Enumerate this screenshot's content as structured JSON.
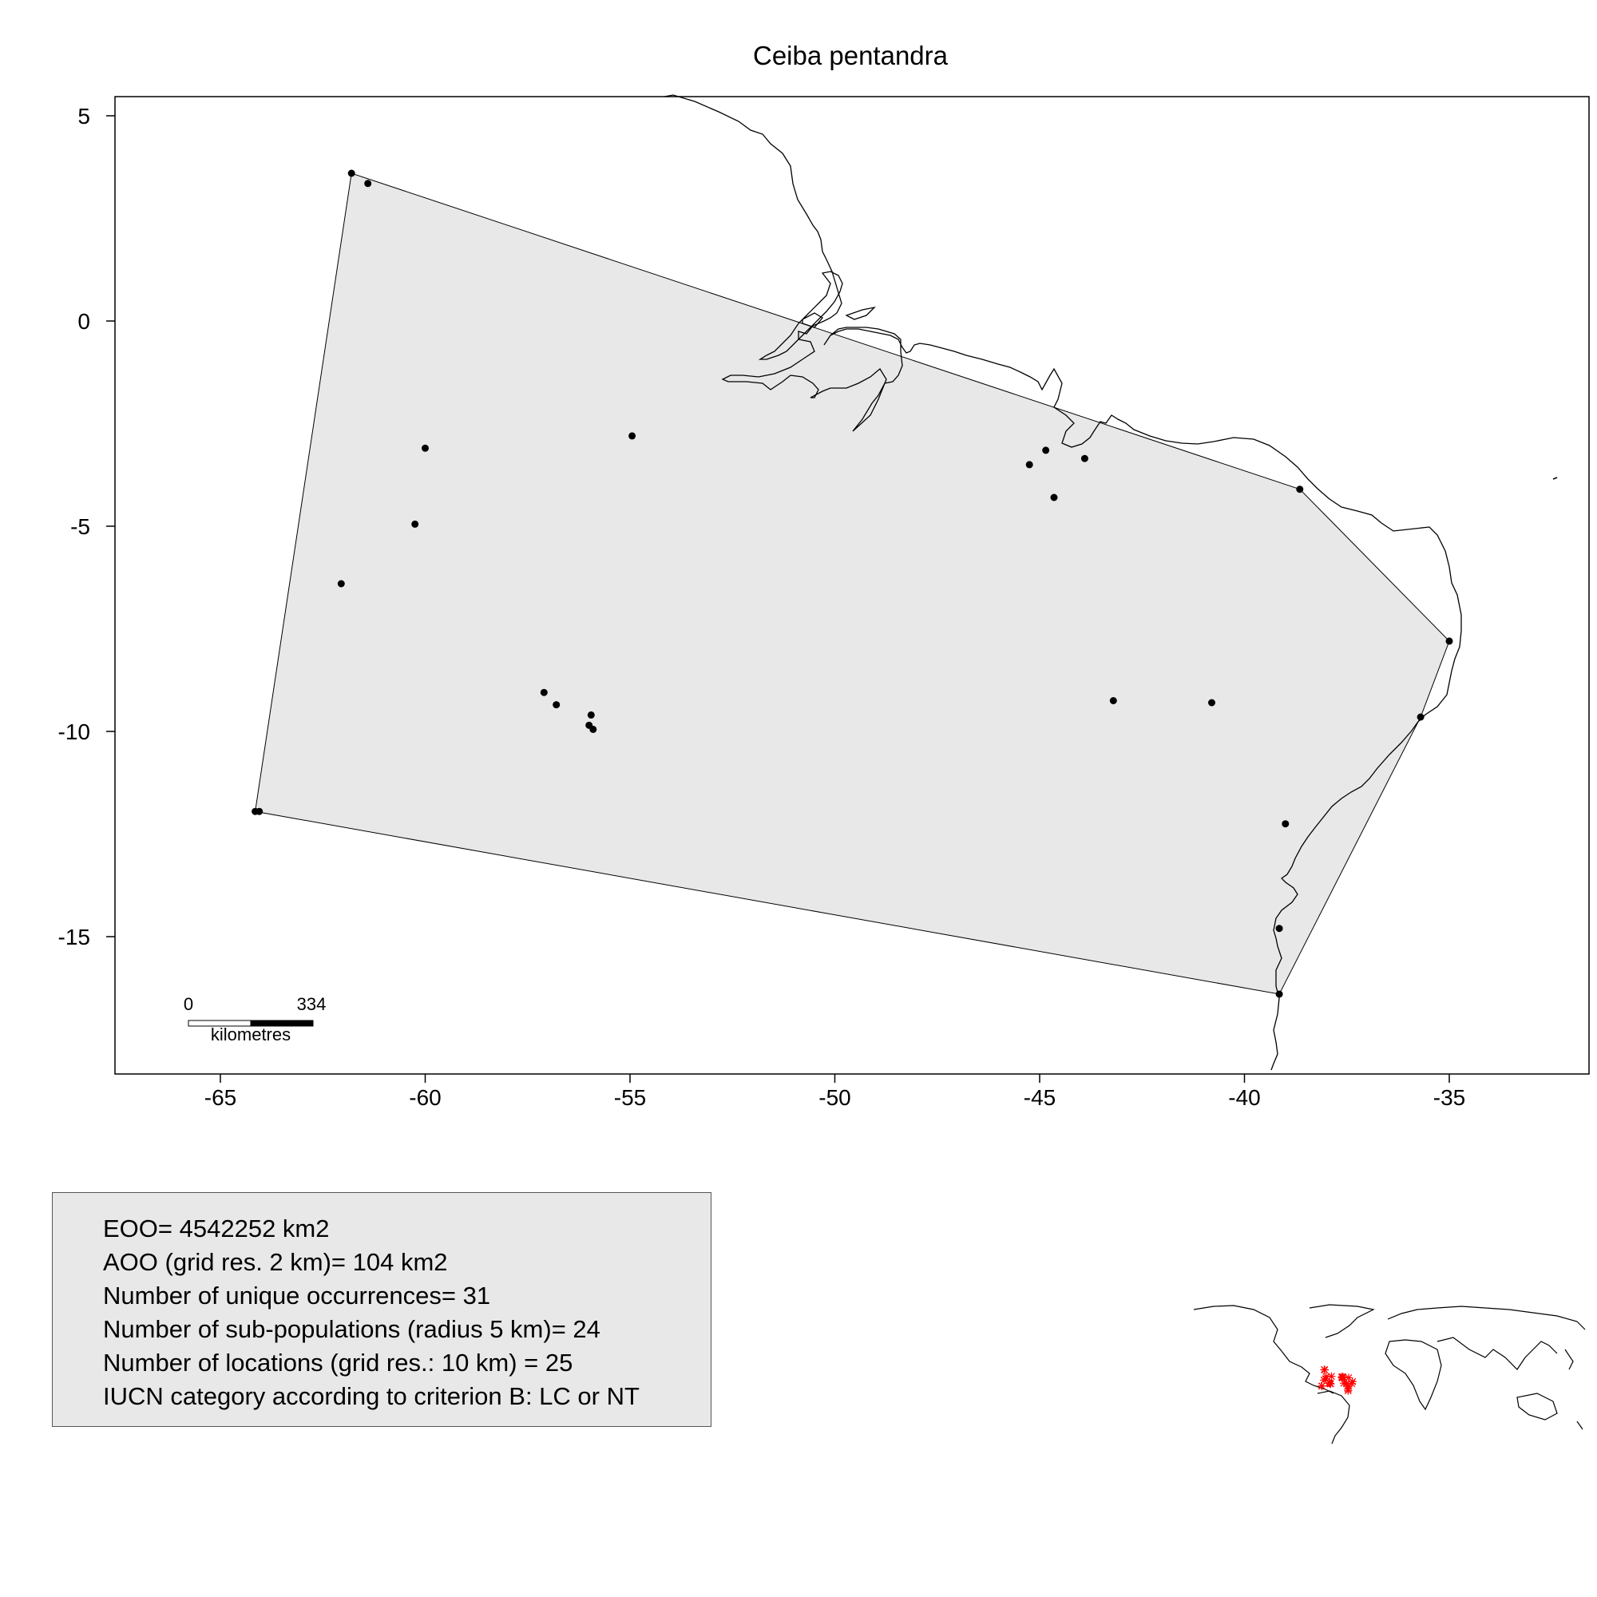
{
  "title": "Ceiba pentandra",
  "map": {
    "x_ticks": [
      "-65",
      "-60",
      "-55",
      "-50",
      "-45",
      "-40",
      "-35"
    ],
    "y_ticks": [
      "5",
      "0",
      "-5",
      "-10",
      "-15"
    ],
    "scale_bar": {
      "start_label": "0",
      "end_label": "334",
      "unit_label": "kilometres"
    },
    "hull_fill": "#e8e8e8",
    "hull_stroke": "#000000",
    "point_color": "#000000",
    "occurrences": [
      [
        -61.8,
        3.6
      ],
      [
        -61.4,
        3.35
      ],
      [
        -60.0,
        -3.1
      ],
      [
        -60.25,
        -4.95
      ],
      [
        -62.05,
        -6.4
      ],
      [
        -54.95,
        -2.8
      ],
      [
        -57.1,
        -9.05
      ],
      [
        -56.8,
        -9.35
      ],
      [
        -56.0,
        -9.85
      ],
      [
        -55.9,
        -9.95
      ],
      [
        -55.95,
        -9.6
      ],
      [
        -64.15,
        -11.95
      ],
      [
        -64.05,
        -11.95
      ],
      [
        -45.25,
        -3.5
      ],
      [
        -44.85,
        -3.15
      ],
      [
        -44.65,
        -4.3
      ],
      [
        -43.9,
        -3.35
      ],
      [
        -38.65,
        -4.1
      ],
      [
        -35.0,
        -7.8
      ],
      [
        -43.2,
        -9.25
      ],
      [
        -40.8,
        -9.3
      ],
      [
        -35.7,
        -9.65
      ],
      [
        -39.0,
        -12.25
      ],
      [
        -39.15,
        -14.8
      ],
      [
        -39.15,
        -16.4
      ]
    ]
  },
  "inset": {
    "occurrence_color": "#ff0000"
  },
  "stats": [
    "EOO= 4542252 km2",
    "AOO (grid res. 2 km)= 104 km2",
    "Number of unique occurrences= 31",
    "Number of sub-populations (radius 5 km)= 24",
    "Number of locations (grid res.: 10  km) = 25",
    "IUCN category according to criterion B: LC or NT"
  ]
}
